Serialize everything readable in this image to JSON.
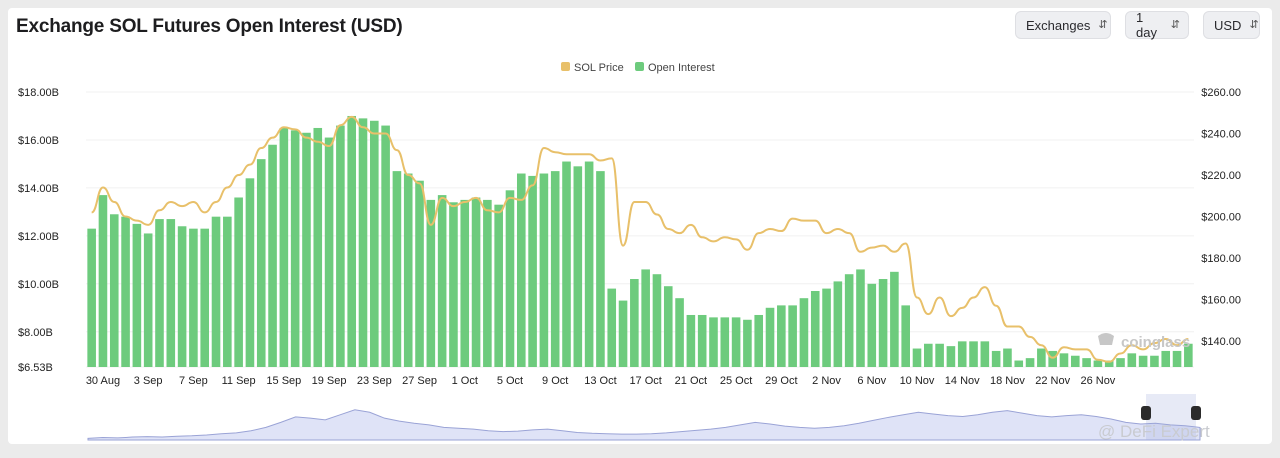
{
  "title": "Exchange SOL Futures Open Interest (USD)",
  "controls": {
    "exchanges": "Exchanges",
    "interval": "1 day",
    "currency": "USD"
  },
  "brand_watermark": "coinglass",
  "source_watermark": "@ DeFi Expert",
  "colors": {
    "price_line": "#e8c06a",
    "oi_bars": "#6dcb7d",
    "navigator_fill": "#dfe3f7",
    "navigator_line": "#9aa3d6",
    "grid": "#f0f0f0"
  },
  "chart_data": {
    "type": "bar",
    "legend": [
      "SOL Price",
      "Open Interest"
    ],
    "legend_position": "top-center",
    "x_tick_labels": [
      "30 Aug",
      "3 Sep",
      "7 Sep",
      "11 Sep",
      "15 Sep",
      "19 Sep",
      "23 Sep",
      "27 Sep",
      "1 Oct",
      "5 Oct",
      "9 Oct",
      "13 Oct",
      "17 Oct",
      "21 Oct",
      "25 Oct",
      "29 Oct",
      "2 Nov",
      "6 Nov",
      "10 Nov",
      "14 Nov",
      "18 Nov",
      "22 Nov",
      "26 Nov"
    ],
    "x_tick_start_index": 1,
    "x_tick_step": 4,
    "y_left": {
      "ticks": [
        "$6.53B",
        "$8.00B",
        "$10.00B",
        "$12.00B",
        "$14.00B",
        "$16.00B",
        "$18.00B"
      ],
      "tick_values": [
        6.53,
        8,
        10,
        12,
        14,
        16,
        18
      ],
      "range": [
        6.53,
        18
      ]
    },
    "y_right": {
      "ticks": [
        "$140.00",
        "$160.00",
        "$180.00",
        "$200.00",
        "$220.00",
        "$240.00",
        "$260.00"
      ],
      "tick_values": [
        140,
        160,
        180,
        200,
        220,
        240,
        260
      ],
      "range": [
        127.5,
        260
      ]
    },
    "grid": true,
    "series": [
      {
        "name": "Open Interest",
        "kind": "bar",
        "axis": "left",
        "unit": "USD billions",
        "values": [
          12.3,
          13.7,
          12.9,
          12.8,
          12.5,
          12.1,
          12.7,
          12.7,
          12.4,
          12.3,
          12.3,
          12.8,
          12.8,
          13.6,
          14.4,
          15.2,
          15.8,
          16.5,
          16.4,
          16.3,
          16.5,
          16.1,
          16.6,
          17.0,
          16.9,
          16.8,
          16.6,
          14.7,
          14.6,
          14.3,
          13.5,
          13.7,
          13.4,
          13.5,
          13.6,
          13.5,
          13.3,
          13.9,
          14.6,
          14.5,
          14.6,
          14.7,
          15.1,
          14.9,
          15.1,
          14.7,
          9.8,
          9.3,
          10.2,
          10.6,
          10.4,
          9.9,
          9.4,
          8.7,
          8.7,
          8.6,
          8.6,
          8.6,
          8.5,
          8.7,
          9.0,
          9.1,
          9.1,
          9.4,
          9.7,
          9.8,
          10.1,
          10.4,
          10.6,
          10.0,
          10.2,
          10.5,
          9.1,
          7.3,
          7.5,
          7.5,
          7.4,
          7.6,
          7.6,
          7.6,
          7.2,
          7.3,
          6.8,
          6.9,
          7.3,
          7.2,
          7.1,
          7.0,
          6.9,
          6.8,
          6.8,
          6.9,
          7.1,
          7.0,
          7.0,
          7.2,
          7.2,
          7.5
        ]
      },
      {
        "name": "SOL Price",
        "kind": "line",
        "axis": "right",
        "unit": "USD",
        "values": [
          202,
          214,
          207,
          200,
          198,
          196,
          203,
          207,
          205,
          207,
          202,
          207,
          214,
          220,
          225,
          233,
          238,
          243,
          242,
          238,
          236,
          234,
          244,
          248,
          243,
          240,
          240,
          232,
          220,
          216,
          196,
          209,
          205,
          207,
          209,
          203,
          202,
          209,
          208,
          215,
          233,
          231,
          230,
          230,
          230,
          227,
          228,
          186,
          207,
          207,
          201,
          194,
          192,
          196,
          190,
          188,
          190,
          189,
          184,
          192,
          194,
          193,
          199,
          198,
          198,
          192,
          194,
          192,
          183,
          185,
          186,
          183,
          187,
          161,
          153,
          161,
          152,
          156,
          161,
          166,
          157,
          147,
          147,
          142,
          138,
          132,
          137,
          136,
          136,
          131,
          130,
          134,
          138,
          136,
          139,
          141,
          138,
          141
        ]
      }
    ],
    "navigator_series": [
      0.04,
      0.06,
      0.05,
      0.07,
      0.08,
      0.07,
      0.09,
      0.1,
      0.12,
      0.15,
      0.17,
      0.22,
      0.3,
      0.42,
      0.55,
      0.52,
      0.48,
      0.6,
      0.72,
      0.66,
      0.52,
      0.45,
      0.4,
      0.36,
      0.3,
      0.28,
      0.26,
      0.22,
      0.2,
      0.21,
      0.24,
      0.26,
      0.22,
      0.18,
      0.16,
      0.15,
      0.14,
      0.14,
      0.15,
      0.17,
      0.2,
      0.23,
      0.26,
      0.3,
      0.36,
      0.42,
      0.38,
      0.33,
      0.3,
      0.28,
      0.3,
      0.34,
      0.4,
      0.47,
      0.54,
      0.6,
      0.66,
      0.62,
      0.58,
      0.56,
      0.6,
      0.66,
      0.7,
      0.64,
      0.58,
      0.55,
      0.58,
      0.6,
      0.56,
      0.5,
      0.42,
      0.38,
      0.4,
      0.36,
      0.34,
      0.3
    ]
  }
}
